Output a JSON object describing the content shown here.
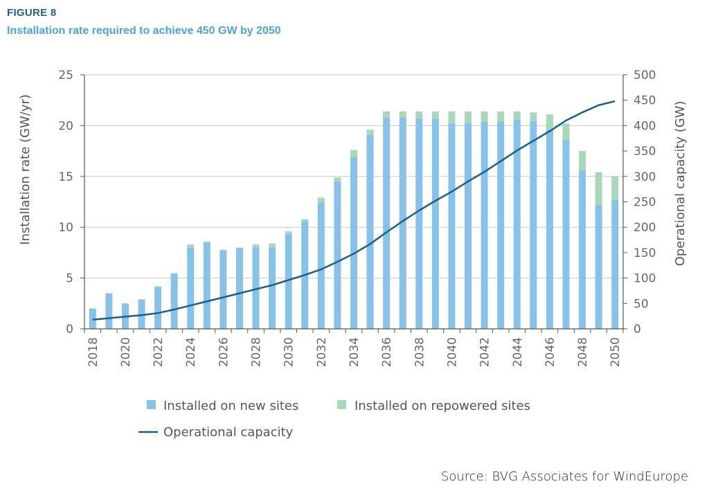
{
  "figure": {
    "label": "FIGURE 8",
    "title": "Installation rate required to achieve 450 GW by 2050",
    "source": "Source: BVG Associates for WindEurope"
  },
  "chart_data": {
    "type": "bar",
    "categories": [
      "2018",
      "2019",
      "2020",
      "2021",
      "2022",
      "2023",
      "2024",
      "2025",
      "2026",
      "2027",
      "2028",
      "2029",
      "2030",
      "2031",
      "2032",
      "2033",
      "2034",
      "2035",
      "2036",
      "2037",
      "2038",
      "2039",
      "2040",
      "2041",
      "2042",
      "2043",
      "2044",
      "2045",
      "2046",
      "2047",
      "2048",
      "2049",
      "2050"
    ],
    "x_tick_labels": [
      "2018",
      "2020",
      "2022",
      "2024",
      "2026",
      "2028",
      "2030",
      "2032",
      "2034",
      "2036",
      "2038",
      "2040",
      "2042",
      "2044",
      "2046",
      "2048",
      "2050"
    ],
    "series": [
      {
        "name": "Installed on new sites",
        "axis": "left",
        "color": "#88c2e8",
        "values": [
          2.0,
          3.5,
          2.5,
          2.9,
          4.1,
          5.4,
          8.0,
          8.5,
          7.7,
          7.9,
          8.0,
          8.0,
          9.3,
          10.6,
          12.4,
          14.5,
          16.9,
          19.1,
          20.8,
          20.8,
          20.7,
          20.7,
          20.2,
          20.2,
          20.4,
          20.4,
          20.6,
          20.4,
          19.6,
          18.6,
          15.6,
          12.2,
          12.7
        ]
      },
      {
        "name": "Installed on repowered sites",
        "axis": "left",
        "color": "#a8d8b9",
        "values": [
          0,
          0,
          0,
          0,
          0.1,
          0.1,
          0.3,
          0.1,
          0.1,
          0.1,
          0.3,
          0.4,
          0.3,
          0.2,
          0.5,
          0.4,
          0.7,
          0.5,
          0.6,
          0.6,
          0.7,
          0.7,
          1.2,
          1.2,
          1.0,
          1.0,
          0.8,
          0.9,
          1.5,
          1.6,
          1.9,
          3.2,
          2.3
        ]
      },
      {
        "name": "Operational capacity",
        "axis": "right",
        "type": "line",
        "color": "#1b5e8a",
        "values": [
          18,
          21,
          24,
          27,
          31,
          38,
          46,
          54,
          62,
          70,
          78,
          86,
          96,
          106,
          117,
          132,
          148,
          167,
          190,
          212,
          233,
          252,
          270,
          290,
          309,
          330,
          351,
          370,
          389,
          410,
          426,
          440,
          448
        ]
      }
    ],
    "legend": [
      "Installed on new sites",
      "Installed on repowered sites",
      "Operational capacity"
    ],
    "ylabel": "Installation rate (GW/yr)",
    "ylim": [
      0,
      25
    ],
    "yticks": [
      0,
      5,
      10,
      15,
      20,
      25
    ],
    "y2label": "Operational capacity (GW)",
    "y2lim": [
      0,
      500
    ],
    "y2ticks": [
      0,
      50,
      100,
      150,
      200,
      250,
      300,
      350,
      400,
      450,
      500
    ],
    "grid": true,
    "legend_position": "bottom"
  }
}
